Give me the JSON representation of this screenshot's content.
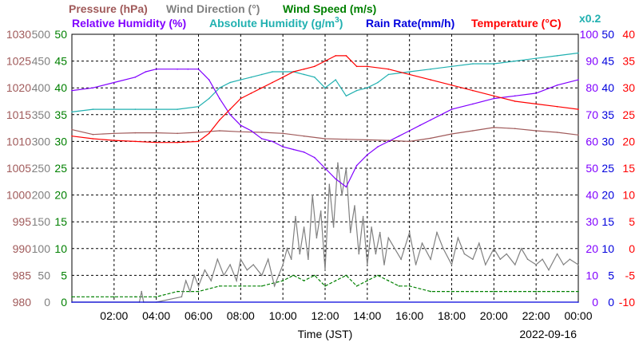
{
  "chart_data": {
    "type": "line",
    "date": "2022-09-16",
    "xlabel": "Time (JST)",
    "x_ticks": [
      "02:00",
      "04:00",
      "06:00",
      "08:00",
      "10:00",
      "12:00",
      "14:00",
      "16:00",
      "18:00",
      "20:00",
      "22:00",
      "00:00"
    ],
    "x_range_hours": [
      0,
      24
    ],
    "grid": true,
    "legend": {
      "row1": [
        {
          "text": "Pressure (hPa)",
          "color": "#a05a5a"
        },
        {
          "text": "Wind Direction (°)",
          "color": "#808080"
        },
        {
          "text": "Wind Speed (m/s)",
          "color": "#008000"
        }
      ],
      "row2": [
        {
          "text": "Relative Humidity (%)",
          "color": "#8000ff"
        },
        {
          "text": "Absolute Humidity (g/m",
          "color": "#20b0b0"
        },
        {
          "text": "Rain Rate(mm/h)",
          "color": "#0000dd"
        },
        {
          "text": "Temperature (°C)",
          "color": "#ff0000"
        }
      ],
      "abs_sup": "3",
      "abs_close": ")",
      "scale_note": "x0.2"
    },
    "axes": {
      "pressure": {
        "range": [
          980,
          1030
        ],
        "ticks": [
          "1030",
          "1025",
          "1020",
          "1015",
          "1010",
          "1005",
          "1000",
          "995",
          "990",
          "985",
          "980"
        ],
        "color": "#a05a5a"
      },
      "wind_dir": {
        "range": [
          0,
          500
        ],
        "ticks": [
          "500",
          "450",
          "400",
          "350",
          "300",
          "250",
          "200",
          "150",
          "100",
          "50",
          "0"
        ],
        "color": "#808080"
      },
      "wind_speed": {
        "range": [
          0,
          50
        ],
        "ticks": [
          "50",
          "45",
          "40",
          "35",
          "30",
          "25",
          "20",
          "15",
          "10",
          "5",
          "0"
        ],
        "color": "#008000"
      },
      "humidity": {
        "range": [
          0,
          100
        ],
        "ticks": [
          "100",
          "90",
          "80",
          "70",
          "60",
          "50",
          "40",
          "30",
          "20",
          "10",
          "0"
        ],
        "color": "#8000ff"
      },
      "rain_rate": {
        "range": [
          0,
          50
        ],
        "ticks": [
          "50",
          "45",
          "40",
          "35",
          "30",
          "25",
          "20",
          "15",
          "10",
          "5",
          "0"
        ],
        "color": "#0000dd"
      },
      "temperature": {
        "range": [
          -10,
          40
        ],
        "ticks": [
          "40",
          "35",
          "30",
          "25",
          "20",
          "15",
          "10",
          "5",
          "0",
          "-5",
          "-10"
        ],
        "color": "#ff0000"
      }
    },
    "series": [
      {
        "name": "Pressure (hPa)",
        "axis": "pressure",
        "color": "#a05a5a",
        "x": [
          0,
          1,
          2,
          3,
          4,
          5,
          6,
          7,
          8,
          9,
          10,
          11,
          12,
          13,
          14,
          15,
          16,
          17,
          18,
          19,
          20,
          21,
          22,
          23,
          24
        ],
        "y": [
          1012.2,
          1011.3,
          1011.5,
          1011.6,
          1011.6,
          1011.5,
          1011.7,
          1012.0,
          1011.8,
          1011.7,
          1011.5,
          1011.0,
          1010.5,
          1010.4,
          1010.3,
          1010.2,
          1010.0,
          1010.6,
          1011.4,
          1012.0,
          1012.6,
          1012.4,
          1012.0,
          1011.7,
          1011.2
        ]
      },
      {
        "name": "Relative Humidity (%)",
        "axis": "humidity",
        "color": "#8000ff",
        "x": [
          0,
          1,
          2,
          3,
          3.5,
          4,
          5,
          5.5,
          6,
          6.5,
          7,
          7.5,
          8,
          8.5,
          9,
          9.5,
          10,
          10.5,
          11,
          11.5,
          12,
          12.5,
          13,
          13.5,
          14,
          14.5,
          15,
          15.5,
          16,
          16.5,
          17,
          17.5,
          18,
          19,
          20,
          21,
          22,
          23,
          24
        ],
        "y": [
          79,
          80,
          82,
          84,
          86,
          87,
          87,
          87,
          87,
          83,
          76,
          70,
          66,
          64,
          61,
          60,
          58,
          57,
          56,
          54,
          50,
          46,
          43,
          51,
          55,
          58,
          60,
          62,
          64,
          66,
          68,
          70,
          72,
          74,
          76,
          77,
          78,
          81,
          83
        ]
      },
      {
        "name": "Absolute Humidity (g/m3)",
        "axis": "humidity",
        "color": "#20b0b0",
        "x": [
          0,
          1,
          2,
          3,
          4,
          5,
          6,
          6.5,
          7,
          7.5,
          8,
          8.5,
          9,
          9.5,
          10,
          10.5,
          11,
          11.5,
          12,
          12.5,
          13,
          13.5,
          14,
          14.5,
          15,
          16,
          17,
          18,
          19,
          20,
          21,
          22,
          23,
          24
        ],
        "y": [
          71,
          72,
          72,
          72,
          72,
          72,
          73,
          76,
          80,
          82,
          83,
          84,
          85,
          86,
          86,
          86,
          85,
          84,
          80,
          83,
          77,
          79,
          80,
          82,
          85,
          86,
          87,
          88,
          89,
          89,
          90,
          91,
          92,
          93
        ]
      },
      {
        "name": "Temperature (°C)",
        "axis": "temperature",
        "color": "#ff0000",
        "x": [
          0,
          1,
          2,
          3,
          4,
          5,
          6,
          6.5,
          7,
          7.5,
          8,
          8.5,
          9,
          9.5,
          10,
          10.5,
          11,
          11.5,
          12,
          12.5,
          13,
          13.5,
          14,
          15,
          16,
          17,
          18,
          19,
          20,
          21,
          22,
          23,
          24
        ],
        "y": [
          21,
          20.5,
          20.2,
          20,
          19.8,
          19.8,
          20,
          21.5,
          24,
          26,
          28,
          29,
          30,
          31,
          32,
          33,
          33.5,
          34,
          35,
          36,
          36,
          34,
          34,
          33.5,
          32.5,
          31.5,
          30.5,
          29.5,
          28.5,
          27.5,
          27,
          26.5,
          26
        ]
      },
      {
        "name": "Rain Rate(mm/h)",
        "axis": "rain_rate",
        "color": "#0000dd",
        "x": [
          0,
          24
        ],
        "y": [
          0,
          0
        ]
      },
      {
        "name": "Wind Direction (°)",
        "axis": "wind_dir",
        "color": "#808080",
        "x": [
          0,
          3.2,
          3.3,
          3.4,
          4,
          5.2,
          5.4,
          5.6,
          5.8,
          6,
          6.3,
          6.6,
          6.9,
          7.2,
          7.5,
          7.8,
          8,
          8.3,
          8.6,
          9,
          9.3,
          9.6,
          10,
          10.2,
          10.4,
          10.6,
          10.8,
          11,
          11.2,
          11.4,
          11.6,
          11.8,
          12,
          12.2,
          12.4,
          12.6,
          12.8,
          13,
          13.2,
          13.4,
          13.6,
          13.8,
          14,
          14.2,
          14.4,
          14.6,
          14.8,
          15,
          15.3,
          15.6,
          16,
          16.3,
          16.6,
          17,
          17.3,
          17.6,
          18,
          18.3,
          18.6,
          19,
          19.3,
          19.6,
          20,
          20.3,
          20.6,
          21,
          21.3,
          21.6,
          22,
          22.3,
          22.6,
          23,
          23.3,
          23.6,
          24
        ],
        "y": [
          0,
          0,
          20,
          0,
          0,
          10,
          40,
          20,
          50,
          30,
          60,
          40,
          80,
          50,
          70,
          40,
          80,
          60,
          70,
          50,
          80,
          30,
          70,
          100,
          80,
          160,
          90,
          140,
          80,
          200,
          120,
          170,
          60,
          220,
          140,
          260,
          200,
          250,
          130,
          180,
          90,
          160,
          70,
          140,
          90,
          130,
          70,
          120,
          100,
          80,
          130,
          70,
          110,
          80,
          130,
          100,
          70,
          120,
          90,
          80,
          110,
          70,
          100,
          80,
          90,
          70,
          100,
          80,
          70,
          80,
          60,
          90,
          70,
          80,
          70
        ]
      },
      {
        "name": "Wind Speed (m/s)",
        "axis": "wind_speed",
        "color": "#008000",
        "x": [
          0,
          1,
          2,
          3,
          4,
          5,
          6,
          7,
          8,
          9,
          10,
          10.5,
          11,
          11.5,
          12,
          12.5,
          13,
          13.5,
          14,
          14.5,
          15,
          15.5,
          16,
          17,
          18,
          19,
          20,
          21,
          22,
          23,
          24
        ],
        "y": [
          1,
          1,
          1,
          1,
          1,
          2,
          2,
          3,
          3,
          3,
          4,
          5,
          4,
          5,
          3,
          4,
          5,
          3,
          4,
          5,
          4,
          3,
          3,
          2,
          2,
          2,
          2,
          2,
          2,
          2,
          2
        ]
      }
    ]
  }
}
